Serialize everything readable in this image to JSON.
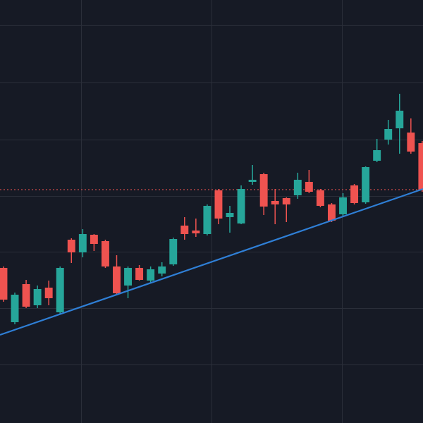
{
  "chart_data": {
    "type": "candlestick",
    "xlim": [
      -0.31,
      37.07
    ],
    "ylim": [
      0,
      600
    ],
    "up_color": "#26a69a",
    "down_color": "#ef5350",
    "open": [
      220,
      143,
      197,
      167,
      192,
      157,
      260,
      242,
      267,
      258,
      222,
      195,
      220,
      202,
      212,
      225,
      280,
      273,
      268,
      330,
      292,
      283,
      342,
      353,
      315,
      319,
      323,
      342,
      330,
      310,
      296,
      337,
      313,
      372,
      402,
      418,
      412,
      397
    ],
    "high": [
      222,
      185,
      203,
      195,
      202,
      222,
      262,
      275,
      268,
      260,
      238,
      222,
      224,
      222,
      228,
      263,
      292,
      290,
      310,
      332,
      308,
      337,
      366,
      355,
      332,
      320,
      355,
      359,
      332,
      312,
      326,
      339,
      364,
      403,
      430,
      467,
      432,
      400
    ],
    "low": [
      172,
      140,
      163,
      163,
      167,
      155,
      227,
      235,
      244,
      220,
      182,
      177,
      202,
      198,
      208,
      223,
      260,
      264,
      266,
      282,
      270,
      282,
      338,
      295,
      282,
      285,
      318,
      326,
      306,
      285,
      294,
      310,
      311,
      370,
      395,
      382,
      382,
      328
    ],
    "close": [
      175,
      182,
      165,
      190,
      177,
      220,
      242,
      268,
      254,
      222,
      184,
      220,
      203,
      218,
      222,
      261,
      268,
      269,
      308,
      290,
      298,
      332,
      345,
      307,
      310,
      310,
      345,
      328,
      308,
      287,
      320,
      312,
      363,
      387,
      417,
      443,
      385,
      330
    ],
    "trendline": {
      "values": [
        125,
        332
      ],
      "color": "#2f7fd6"
    },
    "price_line": {
      "value": 331,
      "color": "#ef5350"
    }
  }
}
